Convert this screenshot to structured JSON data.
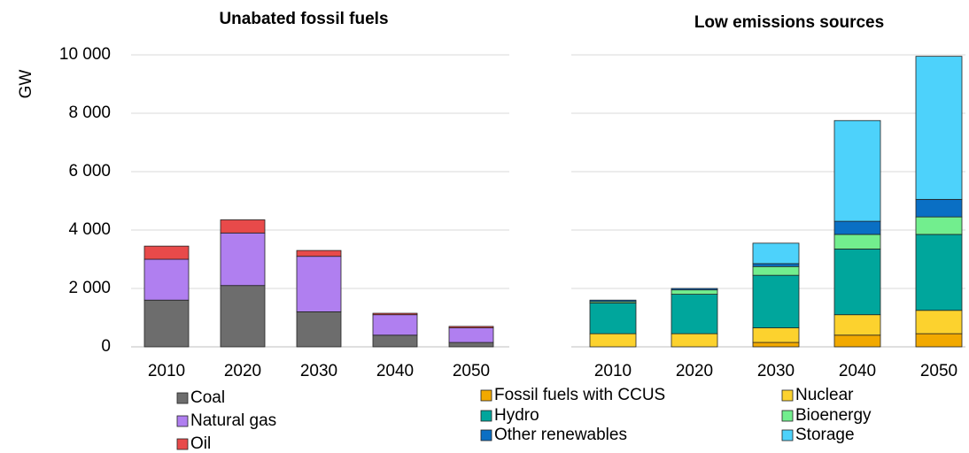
{
  "chart_data": [
    {
      "type": "stacked_bar",
      "title": "Unabated fossil fuels",
      "y_label": "GW",
      "categories": [
        "2010",
        "2020",
        "2030",
        "2040",
        "2050"
      ],
      "series": [
        {
          "name": "Coal",
          "color": "#6d6d6d",
          "values": [
            1600,
            2100,
            1200,
            400,
            150
          ]
        },
        {
          "name": "Natural gas",
          "color": "#b07ff0",
          "values": [
            1400,
            1800,
            1900,
            700,
            500
          ]
        },
        {
          "name": "Oil",
          "color": "#e84a4a",
          "values": [
            450,
            450,
            200,
            50,
            50
          ]
        }
      ],
      "ylim": [
        0,
        10000
      ],
      "yticks": [
        0,
        {
          "value": 2000,
          "label": "2 000"
        },
        {
          "value": 4000,
          "label": "4 000"
        },
        {
          "value": 6000,
          "label": "6 000"
        },
        {
          "value": 8000,
          "label": "8 000"
        },
        {
          "value": 10000,
          "label": "10 000"
        }
      ],
      "grid": true
    },
    {
      "type": "stacked_bar",
      "title": "Low emissions sources",
      "categories": [
        "2010",
        "2020",
        "2030",
        "2040",
        "2050"
      ],
      "series": [
        {
          "name": "Fossil fuels with CCUS",
          "color": "#f2a900",
          "values": [
            0,
            0,
            150,
            400,
            450
          ]
        },
        {
          "name": "Nuclear",
          "color": "#fcd22e",
          "values": [
            450,
            450,
            500,
            700,
            800
          ]
        },
        {
          "name": "Hydro",
          "color": "#00a69c",
          "values": [
            1050,
            1350,
            1800,
            2250,
            2600
          ]
        },
        {
          "name": "Bioenergy",
          "color": "#72ee8e",
          "values": [
            50,
            150,
            300,
            500,
            600
          ]
        },
        {
          "name": "Other renewables",
          "color": "#0a6fc4",
          "values": [
            50,
            50,
            100,
            450,
            600
          ]
        },
        {
          "name": "Storage",
          "color": "#4dd2fb",
          "values": [
            0,
            0,
            700,
            3450,
            4900
          ]
        }
      ],
      "ylim": [
        0,
        10000
      ],
      "yticks": [
        0,
        2000,
        4000,
        6000,
        8000,
        10000
      ],
      "grid": true
    }
  ]
}
